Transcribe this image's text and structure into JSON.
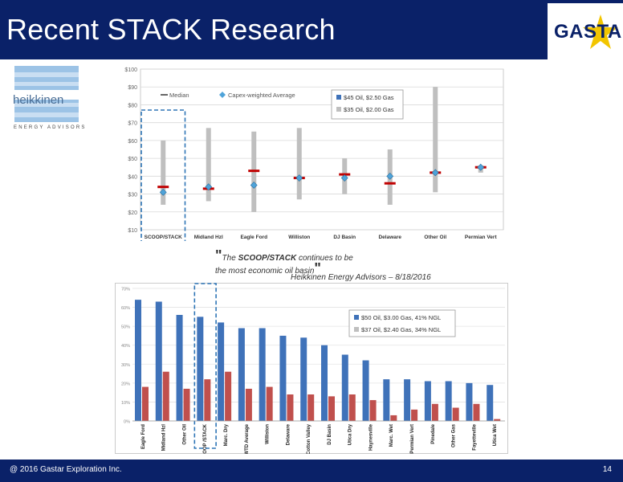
{
  "header": {
    "title": "Recent STACK Research",
    "logo_text": "GASTAR"
  },
  "source_logo": {
    "name": "heikkinen",
    "subtitle": "ENERGY ADVISORS"
  },
  "quote": {
    "open_mark": "\"",
    "text_before": "The ",
    "emphasis": "SCOOP/STACK",
    "text_after": " continues to be",
    "line2": "the most economic oil basin",
    "close_mark": "\"",
    "attribution": "Heikkinen Energy Advisors – 8/18/2016"
  },
  "footer": {
    "copyright": "@ 2016 Gastar Exploration Inc.",
    "page": "14"
  },
  "colors": {
    "navy": "#0a2168",
    "bar_blue": "#3f72b9",
    "bar_red": "#c0504d",
    "range_gray": "#bfbfbf",
    "median_red": "#c00000",
    "diamond_blue": "#4fa3d9"
  },
  "chart_data": [
    {
      "type": "range",
      "ylim": [
        10,
        100
      ],
      "yticks": [
        "$10",
        "$20",
        "$30",
        "$40",
        "$50",
        "$60",
        "$70",
        "$80",
        "$90",
        "$100"
      ],
      "categories": [
        "SCOOP/STACK",
        "Midland Hzl",
        "Eagle Ford",
        "Williston",
        "DJ Basin",
        "Delaware",
        "Other Oil",
        "Permian Vert"
      ],
      "range_low": [
        24,
        26,
        20,
        27,
        30,
        24,
        31,
        42
      ],
      "range_high": [
        60,
        67,
        65,
        67,
        50,
        55,
        90,
        46
      ],
      "median": [
        34,
        33,
        43,
        39,
        41,
        36,
        42,
        45
      ],
      "capex_weighted_average": [
        31,
        34,
        35,
        39,
        39,
        40,
        42,
        45
      ],
      "legend": [
        "Median",
        "Capex-weighted Average"
      ],
      "legend2": [
        "$45 Oil, $2.50 Gas",
        "$35 Oil, $2.00 Gas"
      ],
      "highlight": "SCOOP/STACK"
    },
    {
      "type": "bar",
      "ylim": [
        0,
        70
      ],
      "yticks": [
        "0%",
        "10%",
        "20%",
        "30%",
        "40%",
        "50%",
        "60%",
        "70%"
      ],
      "categories": [
        "Eagle Ford",
        "Midland Hzl",
        "Other Oil",
        "SCOOP /STACK",
        "Marc. Dry",
        "WTD Average",
        "Williston",
        "Delaware",
        "Cotton Valley",
        "DJ Basin",
        "Utica Dry",
        "Haynesville",
        "Marc. Wet",
        "Permian Vert",
        "Pinedale",
        "Other Gas",
        "Fayetteville",
        "Utica Wet"
      ],
      "series": [
        {
          "name": "$50 Oil, $3.00 Gas, 41% NGL",
          "values": [
            64,
            63,
            56,
            55,
            52,
            49,
            49,
            45,
            44,
            40,
            35,
            32,
            22,
            22,
            21,
            21,
            20,
            19
          ]
        },
        {
          "name": "$37 Oil, $2.40 Gas, 34% NGL",
          "values": [
            18,
            26,
            17,
            22,
            26,
            17,
            18,
            14,
            14,
            13,
            14,
            11,
            3,
            6,
            9,
            7,
            9,
            1
          ]
        }
      ],
      "highlight": "SCOOP /STACK"
    }
  ]
}
